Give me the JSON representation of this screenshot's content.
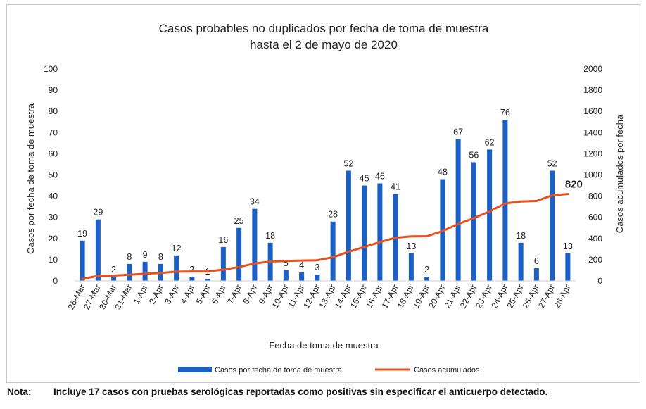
{
  "chart_data": {
    "type": "bar+line",
    "title": [
      "Casos probables no duplicados por fecha de toma de muestra",
      "hasta el 2 de mayo de 2020"
    ],
    "xlabel": "Fecha de toma de muestra",
    "ylabel_left": "Casos por fecha de toma de muestra",
    "ylabel_right": "Casos acumulados por fecha",
    "ylim_left": [
      0,
      100
    ],
    "yticks_left": [
      "0",
      "10",
      "20",
      "30",
      "40",
      "50",
      "60",
      "70",
      "80",
      "90",
      "100"
    ],
    "ylim_right": [
      0,
      2000
    ],
    "yticks_right": [
      "0",
      "200",
      "400",
      "600",
      "800",
      "1000",
      "1200",
      "1400",
      "1600",
      "1800",
      "2000"
    ],
    "categories": [
      "26-Mar",
      "27-Mar",
      "30-Mar",
      "31-Mar",
      "1-Apr",
      "2-Apr",
      "3-Apr",
      "4-Apr",
      "5-Apr",
      "6-Apr",
      "7-Apr",
      "8-Apr",
      "9-Apr",
      "10-Apr",
      "11-Apr",
      "12-Apr",
      "13-Apr",
      "14-Apr",
      "15-Apr",
      "16-Apr",
      "17-Apr",
      "18-Apr",
      "19-Apr",
      "20-Apr",
      "21-Apr",
      "22-Apr",
      "23-Apr",
      "24-Apr",
      "25-Apr",
      "26-Apr",
      "27-Apr",
      "28-Apr"
    ],
    "series": [
      {
        "name": "Casos por fecha de toma de muestra",
        "type": "bar",
        "axis": "left",
        "color": "#1a5fc4",
        "values": [
          19,
          29,
          2,
          8,
          9,
          8,
          12,
          2,
          1,
          16,
          25,
          34,
          18,
          5,
          4,
          3,
          28,
          52,
          45,
          46,
          41,
          13,
          2,
          48,
          67,
          56,
          62,
          76,
          18,
          6,
          52,
          13
        ]
      },
      {
        "name": "Casos acumulados",
        "type": "line",
        "axis": "right",
        "color": "#e8501e",
        "values": [
          19,
          48,
          50,
          58,
          67,
          75,
          87,
          89,
          90,
          106,
          131,
          165,
          183,
          188,
          192,
          195,
          223,
          275,
          320,
          366,
          407,
          420,
          422,
          470,
          537,
          593,
          655,
          731,
          749,
          755,
          807,
          820
        ],
        "end_label": "820"
      }
    ]
  },
  "note": {
    "label": "Nota:",
    "text": "Incluye 17 casos con pruebas serológicas reportadas como positivas sin especificar el anticuerpo detectado."
  }
}
